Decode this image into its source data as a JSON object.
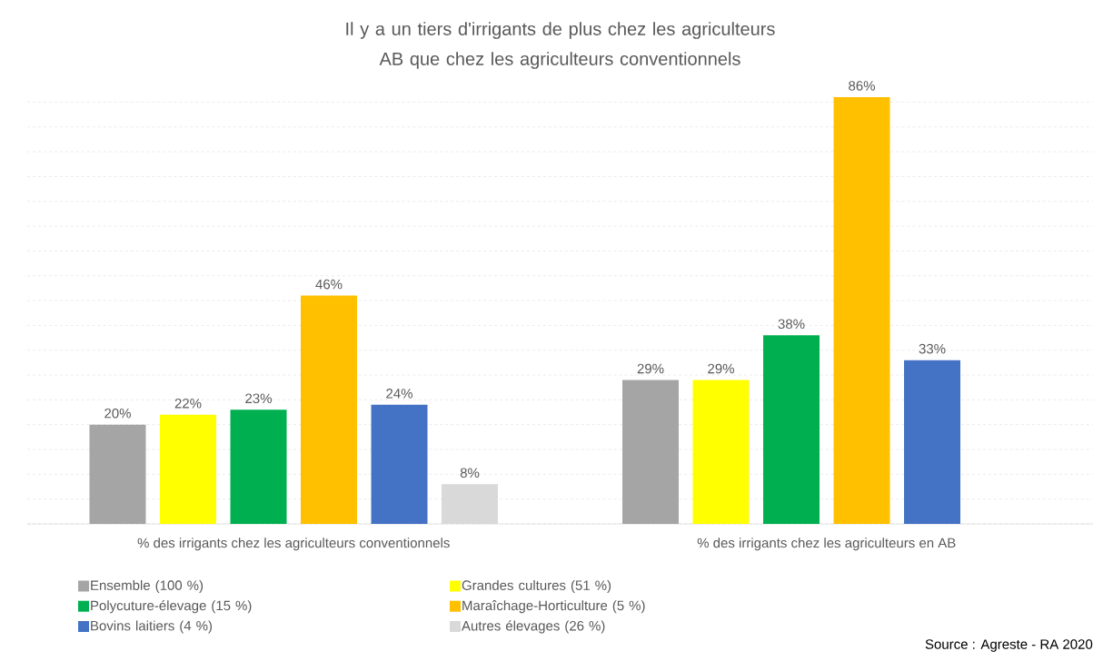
{
  "chart_data": {
    "type": "bar",
    "title": "Il y a un tiers d'irrigants de plus chez les agriculteurs AB que chez les agriculteurs conventionnels",
    "categories": [
      "% des irrigants chez les agriculteurs conventionnels",
      "% des irrigants chez les agriculteurs en AB"
    ],
    "series": [
      {
        "name": "Ensemble (100 %)",
        "color": "#a5a5a5",
        "values": [
          20,
          29
        ],
        "value_labels": [
          "20%",
          "29%"
        ]
      },
      {
        "name": "Grandes cultures (51 %)",
        "color": "#ffff00",
        "values": [
          22,
          29
        ],
        "value_labels": [
          "22%",
          "29%"
        ]
      },
      {
        "name": "Polycuture-élevage (15 %)",
        "color": "#00b050",
        "values": [
          23,
          38
        ],
        "value_labels": [
          "23%",
          "38%"
        ]
      },
      {
        "name": "Maraîchage-Horticulture (5 %)",
        "color": "#ffc000",
        "values": [
          46,
          86
        ],
        "value_labels": [
          "46%",
          "86%"
        ]
      },
      {
        "name": "Bovins laitiers (4 %)",
        "color": "#4472c4",
        "values": [
          24,
          33
        ],
        "value_labels": [
          "24%",
          "33%"
        ]
      },
      {
        "name": "Autres élevages (26 %)",
        "color": "#d9d9d9",
        "values": [
          8,
          null
        ],
        "value_labels": [
          "8%",
          null
        ]
      }
    ],
    "tick_labels": "x",
    "grid": "y",
    "legend": "bottom",
    "annotations": [
      "Source : Agreste  - RA 2020"
    ]
  }
}
